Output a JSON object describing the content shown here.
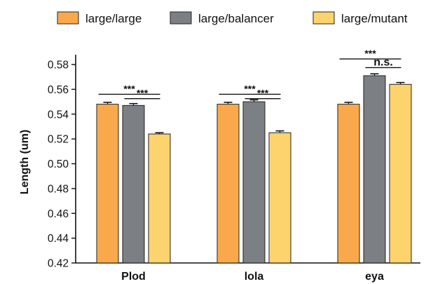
{
  "chart_data": {
    "type": "bar",
    "categories": [
      "Plod",
      "lola",
      "eya"
    ],
    "series": [
      {
        "name": "large/large",
        "color": "#F9A94B",
        "values": [
          0.548,
          0.548,
          0.548
        ],
        "errors": [
          0.0015,
          0.0015,
          0.0015
        ]
      },
      {
        "name": "large/balancer",
        "color": "#7C7F83",
        "values": [
          0.547,
          0.55,
          0.571
        ],
        "errors": [
          0.0015,
          0.0015,
          0.0015
        ]
      },
      {
        "name": "large/mutant",
        "color": "#FDD36E",
        "values": [
          0.524,
          0.525,
          0.564
        ],
        "errors": [
          0.001,
          0.0015,
          0.0015
        ]
      }
    ],
    "ylabel": "Length (um)",
    "ylim": [
      0.42,
      0.58
    ],
    "yticks": [
      "0.42",
      "0.44",
      "0.46",
      "0.48",
      "0.50",
      "0.52",
      "0.54",
      "0.56",
      "0.58"
    ],
    "grid": false,
    "legend": "top",
    "annotations": [
      {
        "category": 0,
        "from": 0,
        "to": 2,
        "level": 0.556,
        "label": "***"
      },
      {
        "category": 0,
        "from": 1,
        "to": 2,
        "level": 0.5525,
        "label": "***"
      },
      {
        "category": 1,
        "from": 0,
        "to": 2,
        "level": 0.556,
        "label": "***"
      },
      {
        "category": 1,
        "from": 1,
        "to": 2,
        "level": 0.5525,
        "label": "***"
      },
      {
        "category": 2,
        "from": 0,
        "to": 2,
        "level": 0.5845,
        "label": "***"
      },
      {
        "category": 2,
        "from": 1,
        "to": 2,
        "level": 0.5775,
        "label": "n.s."
      }
    ]
  }
}
